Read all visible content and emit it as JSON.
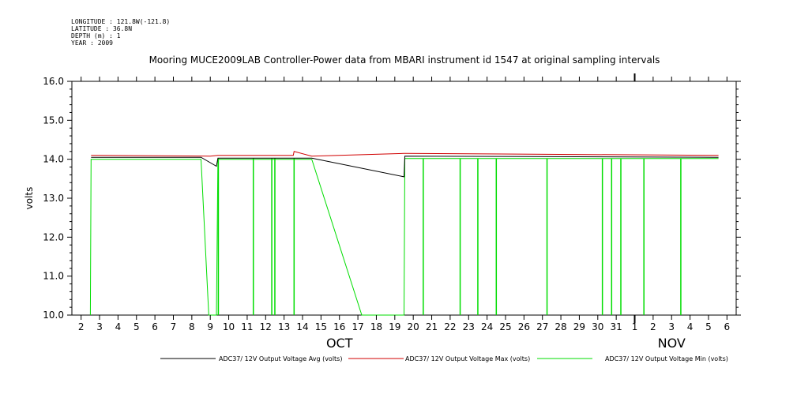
{
  "metadata": {
    "longitude": "LONGITUDE : 121.8W(-121.8)",
    "latitude": "LATITUDE : 36.8N",
    "depth": "DEPTH (m) : 1",
    "year": "YEAR : 2009"
  },
  "chart_data": {
    "type": "line",
    "title": "Mooring MUCE2009LAB Controller-Power data from MBARI instrument id 1547 at original sampling intervals",
    "xlabel": "",
    "ylabel": "volts",
    "ylim": [
      10.0,
      16.0
    ],
    "xlim": [
      "2009-10-01T12:00",
      "2009-11-06T12:00"
    ],
    "y_ticks": [
      "10.0",
      "11.0",
      "12.0",
      "13.0",
      "14.0",
      "15.0",
      "16.0"
    ],
    "x_tick_labels": [
      "2",
      "3",
      "4",
      "5",
      "6",
      "7",
      "8",
      "9",
      "10",
      "11",
      "12",
      "13",
      "14",
      "15",
      "16",
      "17",
      "18",
      "19",
      "20",
      "21",
      "22",
      "23",
      "24",
      "25",
      "26",
      "27",
      "28",
      "29",
      "30",
      "31",
      "1",
      "2",
      "3",
      "4",
      "5",
      "6"
    ],
    "month_labels": [
      {
        "label": "OCT",
        "date": "2009-10-16"
      },
      {
        "label": "NOV",
        "date": "2009-11-03"
      }
    ],
    "legend_placement": "bottom",
    "grid": false,
    "series": [
      {
        "name": "ADC37/ 12V Output Voltage Avg (volts)",
        "color": "#000000",
        "x": [
          "2009-10-02T13:00",
          "2009-10-08T12:00",
          "2009-10-09T08:00",
          "2009-10-09T10:00",
          "2009-10-13T12:00",
          "2009-10-14T12:00",
          "2009-10-19T12:00",
          "2009-10-19T13:00",
          "2009-11-05T13:00"
        ],
        "y": [
          14.05,
          14.05,
          13.82,
          14.03,
          14.03,
          14.03,
          13.55,
          14.08,
          14.05
        ]
      },
      {
        "name": "ADC37/ 12V Output Voltage Max (volts)",
        "color": "#d00000",
        "x": [
          "2009-10-02T13:00",
          "2009-10-09T00:00",
          "2009-10-09T10:00",
          "2009-10-13T12:00",
          "2009-10-13T13:00",
          "2009-10-14T12:00",
          "2009-10-19T12:00",
          "2009-10-19T13:00",
          "2009-11-05T13:00"
        ],
        "y": [
          14.1,
          14.08,
          14.1,
          14.1,
          14.2,
          14.08,
          14.15,
          14.15,
          14.1
        ]
      },
      {
        "name": "ADC37/ 12V Output Voltage Min (volts)",
        "color": "#00dd00",
        "x": [
          "2009-10-02T12:00",
          "2009-10-02T13:00",
          "2009-10-08T12:00",
          "2009-10-08T22:00",
          "2009-10-09T08:00",
          "2009-10-09T10:00",
          "2009-10-14T12:00",
          "2009-10-17T05:00",
          "2009-10-19T12:00",
          "2009-10-19T13:00",
          "2009-11-05T13:00"
        ],
        "y": [
          10.0,
          14.0,
          14.0,
          10.0,
          10.0,
          14.0,
          14.0,
          10.0,
          10.0,
          14.02,
          14.02
        ]
      }
    ],
    "min_series_dropouts": [
      {
        "date": "2009-10-09T10:30",
        "y": 10.0
      },
      {
        "date": "2009-10-11T08:00",
        "y": 10.0
      },
      {
        "date": "2009-10-12T08:00",
        "y": 10.0
      },
      {
        "date": "2009-10-12T12:00",
        "y": 10.0
      },
      {
        "date": "2009-10-13T13:00",
        "y": 10.0
      },
      {
        "date": "2009-10-20T13:00",
        "y": 10.0
      },
      {
        "date": "2009-10-22T13:00",
        "y": 10.0
      },
      {
        "date": "2009-10-23T12:00",
        "y": 10.0
      },
      {
        "date": "2009-10-24T12:00",
        "y": 10.0
      },
      {
        "date": "2009-10-27T06:00",
        "y": 10.0
      },
      {
        "date": "2009-10-30T06:00",
        "y": 10.0
      },
      {
        "date": "2009-10-30T18:00",
        "y": 10.0
      },
      {
        "date": "2009-10-31T06:00",
        "y": 10.0
      },
      {
        "date": "2009-11-01T12:00",
        "y": 10.0
      },
      {
        "date": "2009-11-03T12:00",
        "y": 10.0
      }
    ]
  }
}
